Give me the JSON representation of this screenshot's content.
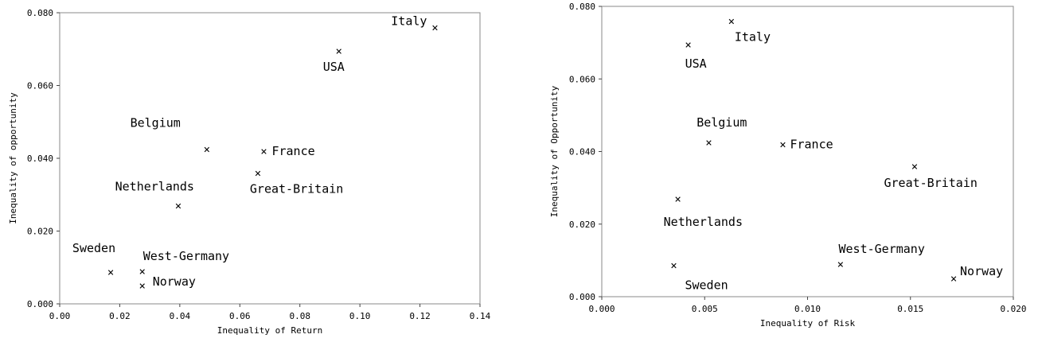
{
  "chart_data": [
    {
      "type": "scatter",
      "xlabel": "Inequality of Return",
      "ylabel": "Inequality of opportunity",
      "xlim": [
        0.0,
        0.14
      ],
      "ylim": [
        0.0,
        0.08
      ],
      "xticks": [
        "0.00",
        "0.02",
        "0.04",
        "0.06",
        "0.08",
        "0.10",
        "0.12",
        "0.14"
      ],
      "yticks": [
        "0.000",
        "0.020",
        "0.040",
        "0.060",
        "0.080"
      ],
      "marker": "×",
      "points": [
        {
          "label": "Italy",
          "x": 0.125,
          "y": 0.076
        },
        {
          "label": "USA",
          "x": 0.093,
          "y": 0.0695
        },
        {
          "label": "Belgium",
          "x": 0.049,
          "y": 0.0425
        },
        {
          "label": "France",
          "x": 0.068,
          "y": 0.042
        },
        {
          "label": "Great-Britain",
          "x": 0.066,
          "y": 0.036
        },
        {
          "label": "Netherlands",
          "x": 0.0395,
          "y": 0.027
        },
        {
          "label": "Sweden",
          "x": 0.017,
          "y": 0.0087
        },
        {
          "label": "West-Germany",
          "x": 0.0275,
          "y": 0.009
        },
        {
          "label": "Norway",
          "x": 0.0275,
          "y": 0.005
        }
      ]
    },
    {
      "type": "scatter",
      "xlabel": "Inequality of Risk",
      "ylabel": "Inequality of Opportunity",
      "xlim": [
        0.0,
        0.02
      ],
      "ylim": [
        0.0,
        0.08
      ],
      "xticks": [
        "0.000",
        "0.005",
        "0.010",
        "0.015",
        "0.020"
      ],
      "yticks": [
        "0.000",
        "0.020",
        "0.040",
        "0.060",
        "0.080"
      ],
      "marker": "×",
      "points": [
        {
          "label": "Italy",
          "x": 0.0063,
          "y": 0.076
        },
        {
          "label": "USA",
          "x": 0.0042,
          "y": 0.0695
        },
        {
          "label": "Belgium",
          "x": 0.0052,
          "y": 0.0425
        },
        {
          "label": "France",
          "x": 0.0088,
          "y": 0.042
        },
        {
          "label": "Great-Britain",
          "x": 0.0152,
          "y": 0.036
        },
        {
          "label": "Netherlands",
          "x": 0.0037,
          "y": 0.027
        },
        {
          "label": "Sweden",
          "x": 0.0035,
          "y": 0.0087
        },
        {
          "label": "West-Germany",
          "x": 0.0116,
          "y": 0.009
        },
        {
          "label": "Norway",
          "x": 0.0171,
          "y": 0.005
        }
      ]
    }
  ]
}
